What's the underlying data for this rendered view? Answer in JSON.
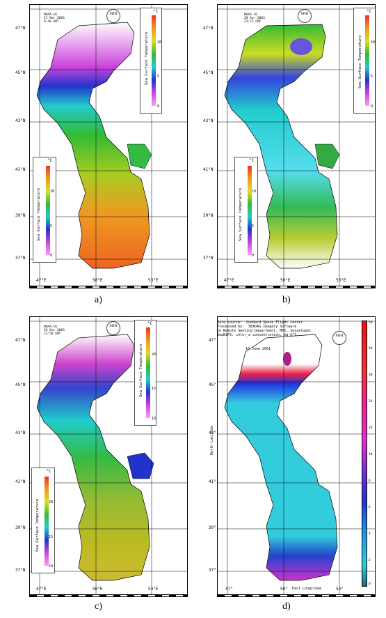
{
  "panels": [
    {
      "id": "a",
      "caption": "a)",
      "header": [
        "NOAA-16",
        "21 Mar 2003",
        "9:40 GMT"
      ],
      "lat_labels": [
        "47°N",
        "45°N",
        "43°N",
        "41°N",
        "39°N",
        "37°N"
      ],
      "lon_labels": [
        "47°E",
        "50°E",
        "53°E"
      ],
      "legend_top": {
        "unit": "°C",
        "title": "Sea Surface Temperature",
        "ticks": [
          "10",
          "5",
          "0"
        ]
      },
      "legend_left": {
        "unit": "°C",
        "title": "Sea Surface Temperature",
        "ticks": [
          "10",
          "5",
          "0"
        ]
      }
    },
    {
      "id": "b",
      "caption": "b)",
      "header": [
        "NOAA-16",
        "28 Apr 2003",
        "23:13 GMT"
      ],
      "lat_labels": [
        "47°N",
        "45°N",
        "43°N",
        "41°N",
        "39°N",
        "37°N"
      ],
      "lon_labels": [
        "47°E",
        "50°E",
        "53°E"
      ],
      "legend_top": {
        "unit": "°C",
        "title": "Sea Surface Temperature",
        "ticks": [
          "10",
          "5",
          "0"
        ]
      },
      "legend_left": {
        "unit": "°C",
        "title": "Sea Surface Temperature",
        "ticks": [
          "10",
          "5",
          "0"
        ]
      }
    },
    {
      "id": "c",
      "caption": "c)",
      "header": [
        "NOAA-16",
        "26 Oct 2003",
        "23:50 GMT"
      ],
      "lat_labels": [
        "47°N",
        "45°N",
        "43°N",
        "41°N",
        "39°N",
        "37°N"
      ],
      "lon_labels": [
        "47°E",
        "50°E",
        "53°E"
      ],
      "legend_top": {
        "unit": "°C",
        "title": "Sea Surface Temperature",
        "ticks": [
          "20",
          "15",
          "10"
        ]
      },
      "legend_left": {
        "unit": "°C",
        "title": "Sea Surface Temperature",
        "ticks": [
          "20",
          "15",
          "10"
        ]
      }
    },
    {
      "id": "d",
      "caption": "d)",
      "header": [
        "Data source:  Goddard Space Flight Center",
        "Processed by:  SEADAS Imagery Software",
        "in Remote Sensing Department, MHI, Sevastopol",
        "SeaWiFS. chlor_a concentration, mg·m^3"
      ],
      "date": "16 June 2001",
      "lat_labels": [
        "47°",
        "45°",
        "43°",
        "41°",
        "39°",
        "37°"
      ],
      "lon_labels": [
        "47°",
        "50°",
        "53°"
      ],
      "lon_axis_title": "East Longitude",
      "lat_axis_title": "North Latitude",
      "chlor_ticks": [
        "50",
        "40",
        "30",
        "24",
        "16",
        "10",
        "8",
        "6",
        "4",
        "2",
        "0"
      ]
    }
  ],
  "logo_text": "MHI"
}
